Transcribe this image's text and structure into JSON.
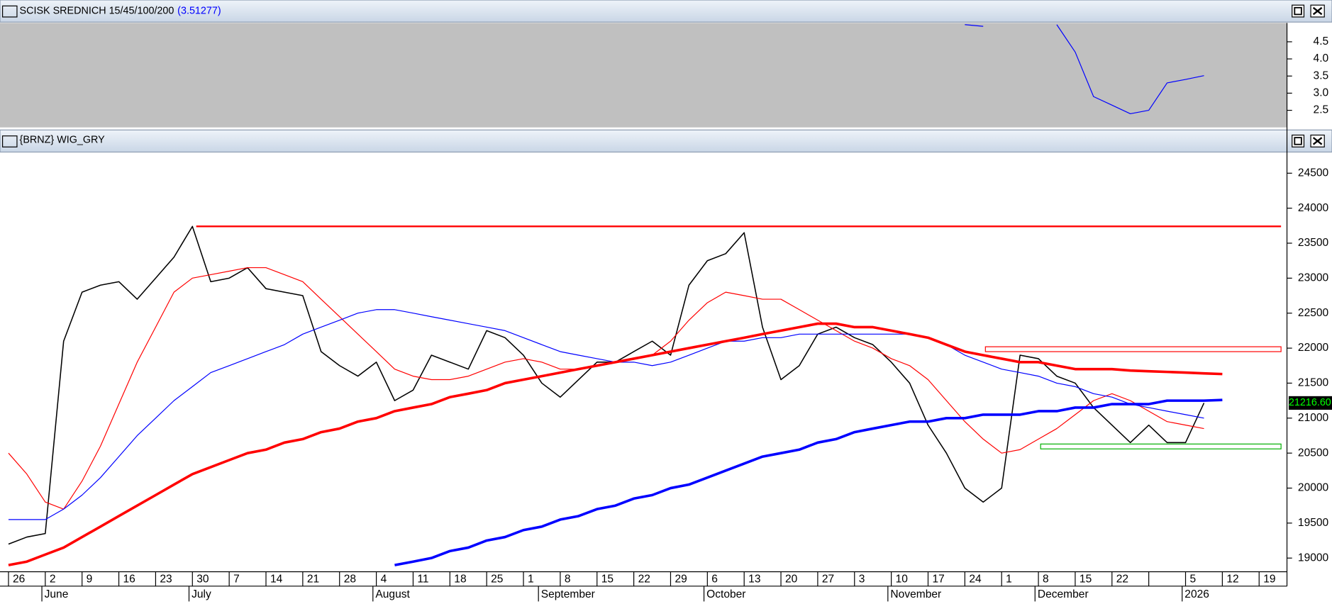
{
  "chart_data": [
    {
      "type": "line",
      "title": "SCISK SREDNICH 15/45/100/200",
      "value_label": "(3.51277)",
      "ylim": [
        2.0,
        5.05
      ],
      "yticks": [
        2.5,
        {
          "value": 3,
          "label": "3.0"
        },
        3.5,
        {
          "value": 4,
          "label": "4.0"
        },
        4.5
      ],
      "series": [
        {
          "color": "#0000ff",
          "values": [
            null,
            null,
            null,
            null,
            null,
            null,
            null,
            null,
            null,
            null,
            null,
            null,
            null,
            null,
            null,
            null,
            null,
            null,
            null,
            null,
            null,
            null,
            null,
            null,
            null,
            null,
            null,
            null,
            null,
            null,
            null,
            null,
            null,
            null,
            null,
            null,
            null,
            null,
            null,
            null,
            null,
            null,
            null,
            null,
            null,
            null,
            null,
            null,
            null,
            null,
            null,
            null,
            5.0,
            4.95,
            null,
            null,
            null,
            5.0,
            4.2,
            2.9,
            2.65,
            2.4,
            2.5,
            3.3,
            3.4,
            3.51277,
            null,
            null,
            null,
            null
          ]
        }
      ]
    },
    {
      "type": "line",
      "title": "{BRNZ} WIG_GRY",
      "categories": [
        "26",
        null,
        "2",
        null,
        "9",
        null,
        "16",
        null,
        "23",
        null,
        "30",
        null,
        "7",
        null,
        "14",
        null,
        "21",
        null,
        "28",
        null,
        "4",
        null,
        "11",
        null,
        "18",
        null,
        "25",
        null,
        "1",
        null,
        "8",
        null,
        "15",
        null,
        "22",
        null,
        "29",
        null,
        "6",
        null,
        "13",
        null,
        "20",
        null,
        "27",
        null,
        "3",
        null,
        "10",
        null,
        "17",
        null,
        "24",
        null,
        "1",
        null,
        "8",
        null,
        "15",
        null,
        "22",
        null,
        null,
        null,
        "5",
        null,
        "12",
        null,
        "19",
        null
      ],
      "months": [
        {
          "label": "June",
          "index": 2
        },
        {
          "label": "July",
          "index": 10
        },
        {
          "label": "August",
          "index": 20
        },
        {
          "label": "September",
          "index": 29
        },
        {
          "label": "October",
          "index": 38
        },
        {
          "label": "November",
          "index": 48
        },
        {
          "label": "December",
          "index": 56
        },
        {
          "label": "2026",
          "index": 64
        }
      ],
      "ylim": [
        18805,
        24790
      ],
      "yticks": [
        19000,
        19500,
        20000,
        20500,
        21000,
        21500,
        22000,
        22500,
        23000,
        23500,
        24000,
        24500
      ],
      "series": [
        {
          "color": "#000000",
          "width": 1.3,
          "values": [
            19200,
            19300,
            19350,
            22100,
            22800,
            22900,
            22950,
            22700,
            23000,
            23300,
            23740,
            22950,
            23000,
            23150,
            22850,
            22800,
            22750,
            21950,
            21750,
            21600,
            21800,
            21250,
            21400,
            21900,
            21800,
            21700,
            22250,
            22150,
            21900,
            21500,
            21300,
            21550,
            21800,
            21800,
            21950,
            22100,
            21900,
            22900,
            23250,
            23350,
            23650,
            22300,
            21550,
            21750,
            22200,
            22300,
            22150,
            22050,
            21800,
            21500,
            20900,
            20500,
            20000,
            19800,
            20000,
            21900,
            21850,
            21600,
            21500,
            21150,
            20900,
            20650,
            20900,
            20650,
            20650,
            21216.6,
            null,
            null,
            null,
            null
          ],
          "value_labels": [
            null,
            null,
            null,
            null,
            null,
            null,
            null,
            null,
            null,
            null,
            null,
            null,
            null,
            null,
            null,
            null,
            null,
            null,
            null,
            null,
            null,
            null,
            null,
            null,
            null,
            null,
            null,
            null,
            null,
            null,
            null,
            null,
            null,
            null,
            null,
            null,
            null,
            null,
            null,
            null,
            null,
            null,
            null,
            null,
            null,
            null,
            null,
            null,
            null,
            null,
            null,
            null,
            null,
            null,
            null,
            null,
            null,
            null,
            null,
            null,
            null,
            null,
            null,
            null,
            null,
            "21216.60",
            null,
            null,
            null,
            null
          ]
        },
        {
          "color": "#ff0000",
          "width": 1,
          "values": [
            20500,
            20200,
            19800,
            19700,
            20100,
            20600,
            21200,
            21800,
            22300,
            22800,
            23000,
            23050,
            23100,
            23150,
            23150,
            23050,
            22950,
            22700,
            22450,
            22200,
            21950,
            21700,
            21600,
            21550,
            21550,
            21600,
            21700,
            21800,
            21850,
            21800,
            21700,
            21700,
            21750,
            21800,
            21850,
            21900,
            22100,
            22400,
            22650,
            22800,
            22750,
            22700,
            22700,
            22550,
            22400,
            22250,
            22100,
            22000,
            21850,
            21750,
            21550,
            21250,
            20950,
            20700,
            20500,
            20550,
            20700,
            20850,
            21050,
            21250,
            21350,
            21250,
            21100,
            20950,
            20900,
            20850,
            null,
            null,
            null,
            null
          ]
        },
        {
          "color": "#0000ff",
          "width": 1,
          "values": [
            19550,
            19550,
            19550,
            19700,
            19900,
            20150,
            20450,
            20750,
            21000,
            21250,
            21450,
            21650,
            21750,
            21850,
            21950,
            22050,
            22200,
            22300,
            22400,
            22500,
            22550,
            22550,
            22500,
            22450,
            22400,
            22350,
            22300,
            22250,
            22150,
            22050,
            21950,
            21900,
            21850,
            21800,
            21800,
            21750,
            21800,
            21900,
            22000,
            22100,
            22100,
            22150,
            22150,
            22200,
            22200,
            22200,
            22200,
            22200,
            22200,
            22200,
            22150,
            22050,
            21900,
            21800,
            21700,
            21650,
            21600,
            21500,
            21450,
            21350,
            21300,
            21200,
            21150,
            21100,
            21050,
            21000,
            null,
            null,
            null,
            null
          ]
        },
        {
          "color": "#ff0000",
          "width": 3,
          "values": [
            18900,
            18950,
            19050,
            19150,
            19300,
            19450,
            19600,
            19750,
            19900,
            20050,
            20200,
            20300,
            20400,
            20500,
            20550,
            20650,
            20700,
            20800,
            20850,
            20950,
            21000,
            21100,
            21150,
            21200,
            21300,
            21350,
            21400,
            21500,
            21550,
            21600,
            21650,
            21700,
            21750,
            21800,
            21850,
            21900,
            21950,
            22000,
            22050,
            22100,
            22150,
            22200,
            22250,
            22300,
            22350,
            22350,
            22300,
            22300,
            22250,
            22200,
            22150,
            22050,
            21950,
            21900,
            21850,
            21800,
            21800,
            21750,
            21700,
            21700,
            21700,
            21680,
            21670,
            21660,
            21650,
            21640,
            21630,
            null,
            null,
            null
          ]
        },
        {
          "color": "#0000ff",
          "width": 3,
          "values": [
            null,
            null,
            null,
            null,
            null,
            null,
            null,
            null,
            null,
            null,
            null,
            null,
            null,
            null,
            null,
            null,
            null,
            null,
            null,
            null,
            null,
            18900,
            18950,
            19000,
            19100,
            19150,
            19250,
            19300,
            19400,
            19450,
            19550,
            19600,
            19700,
            19750,
            19850,
            19900,
            20000,
            20050,
            20150,
            20250,
            20350,
            20450,
            20500,
            20550,
            20650,
            20700,
            20800,
            20850,
            20900,
            20950,
            20950,
            21000,
            21000,
            21050,
            21050,
            21050,
            21100,
            21100,
            21150,
            21150,
            21200,
            21200,
            21200,
            21250,
            21250,
            21250,
            21260,
            null,
            null,
            null
          ]
        }
      ],
      "levels": [
        {
          "value": 23740,
          "color": "#ff0000"
        }
      ],
      "zones": [
        {
          "range": [
            21950,
            22020
          ],
          "color": "#ff0000"
        },
        {
          "range": [
            20560,
            20630
          ],
          "color": "#00b000"
        }
      ]
    }
  ]
}
